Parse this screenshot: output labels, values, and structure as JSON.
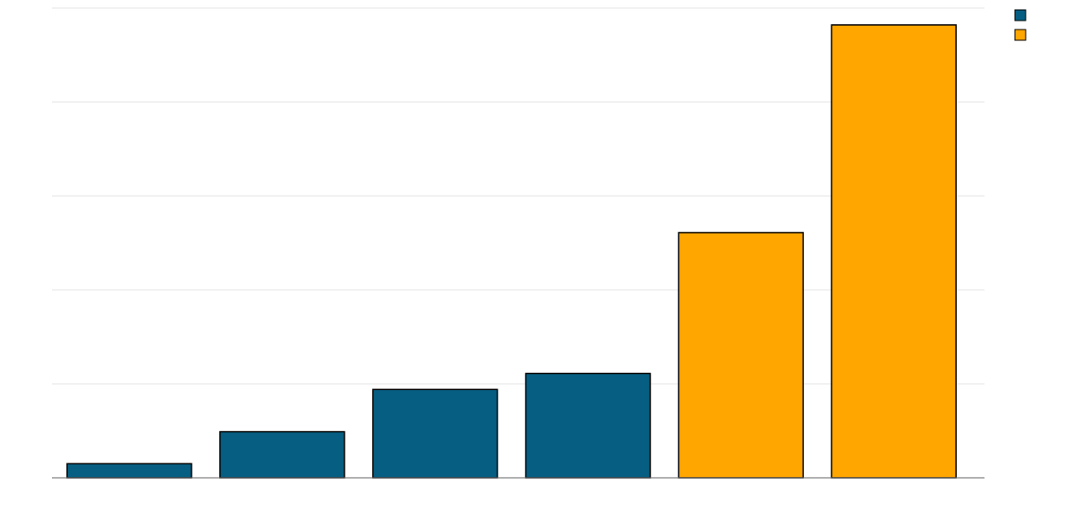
{
  "chart_data": {
    "type": "bar",
    "categories": [
      "",
      "",
      "",
      "",
      "",
      ""
    ],
    "values": [
      1.5,
      4.9,
      9.4,
      11.1,
      26.1,
      48.2
    ],
    "bar_groups": [
      0,
      0,
      0,
      0,
      1,
      1
    ],
    "ylim": [
      0,
      50
    ],
    "yticks": [
      0,
      10,
      20,
      30,
      40,
      50
    ],
    "grid": true,
    "legend_position": "top-right",
    "series": [
      {
        "color": "#065f82"
      },
      {
        "color": "#ffa600"
      }
    ],
    "title": "",
    "xlabel": "",
    "ylabel": ""
  }
}
